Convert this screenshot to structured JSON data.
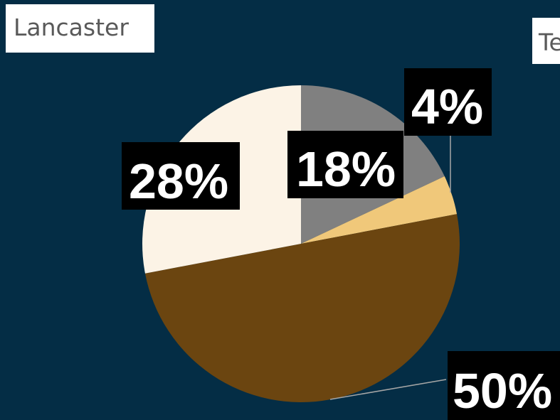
{
  "titles": {
    "left": "Lancaster",
    "right": "Te"
  },
  "chart_data": {
    "type": "pie",
    "title": "Lancaster",
    "slices": [
      {
        "value": 18,
        "label": "18%",
        "color": "#808080"
      },
      {
        "value": 4,
        "label": "4%",
        "color": "#f0c87a"
      },
      {
        "value": 50,
        "label": "50%",
        "color": "#6b4510"
      },
      {
        "value": 28,
        "label": "28%",
        "color": "#fcf3e6"
      }
    ],
    "start_angle_deg": 0,
    "direction": "clockwise",
    "legend": "none",
    "data_labels": true,
    "colors": {
      "background": "#042d45",
      "label_box": "#000000",
      "label_text": "#ffffff",
      "leader_line": "#a6a6a6"
    }
  }
}
